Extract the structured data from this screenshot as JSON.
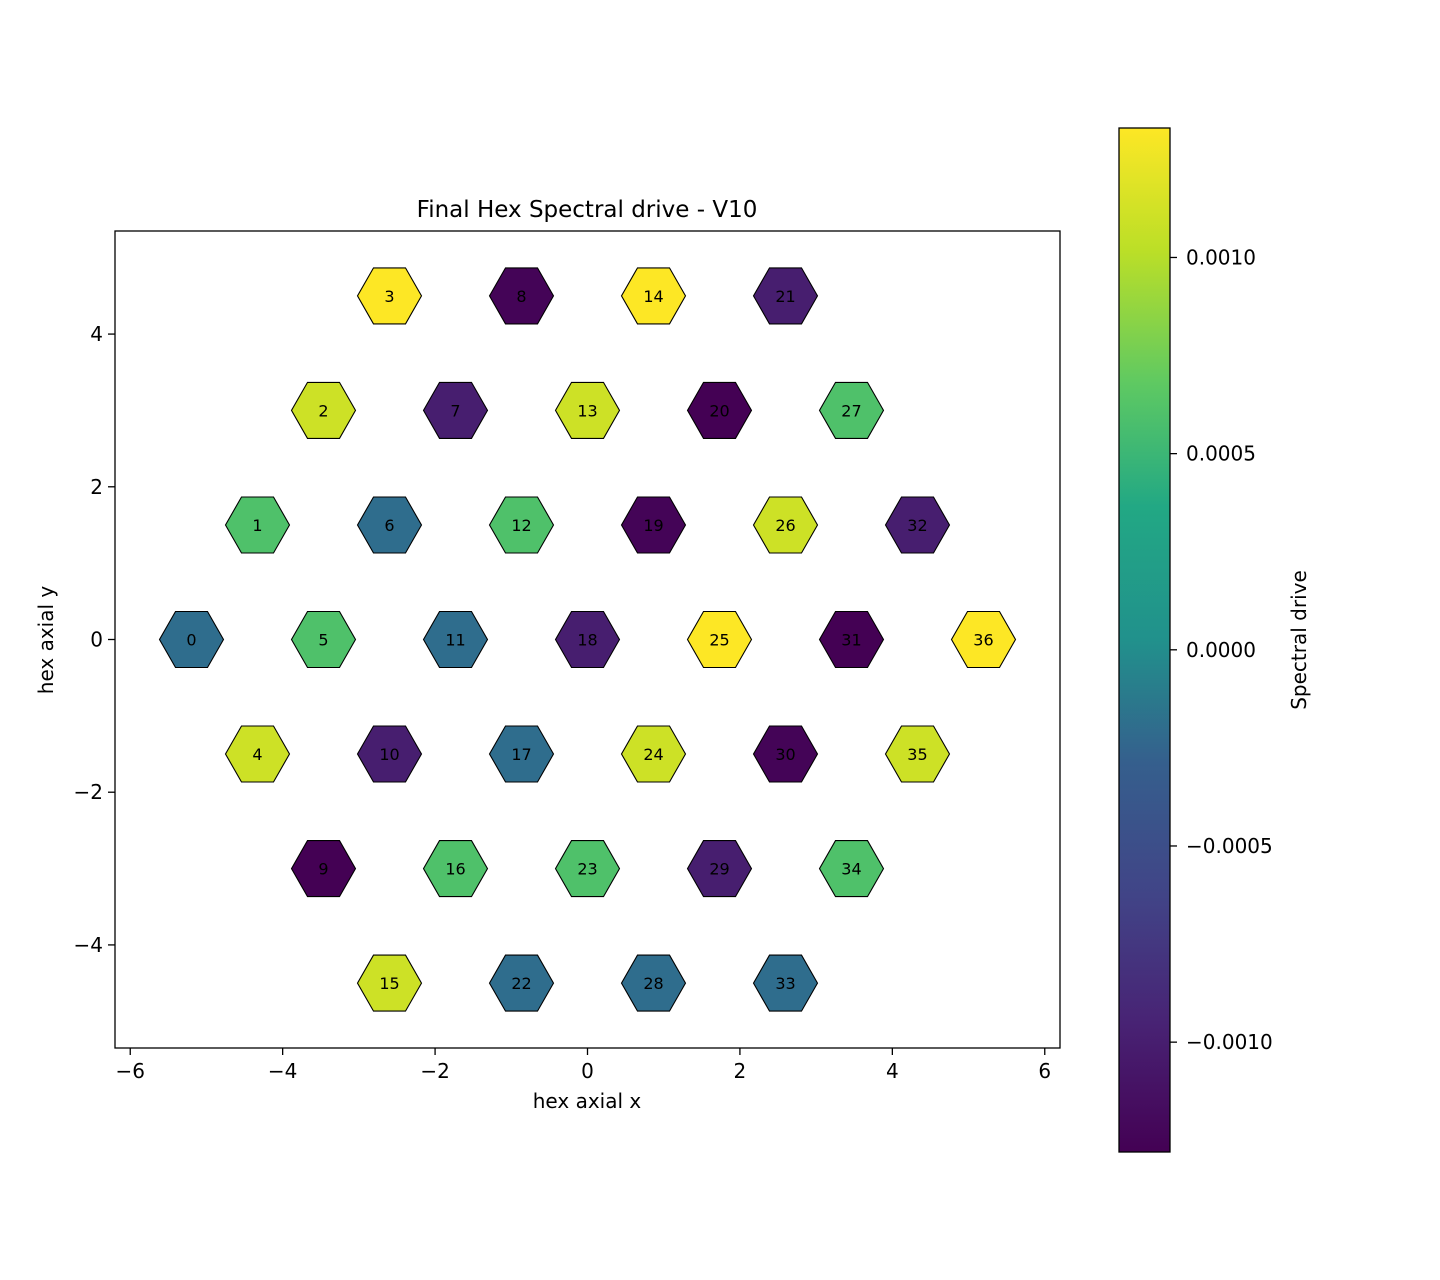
{
  "chart_data": {
    "type": "heatmap",
    "subtype": "hexagonal-cell-map",
    "title": "Final Hex Spectral drive - V10",
    "xlabel": "hex axial x",
    "ylabel": "hex axial y",
    "xlim": [
      -6.2,
      6.2
    ],
    "ylim": [
      -5.35,
      5.35
    ],
    "xticks": [
      -6,
      -4,
      -2,
      0,
      2,
      4,
      6
    ],
    "xtick_labels": [
      "−6",
      "−4",
      "−2",
      "0",
      "2",
      "4",
      "6"
    ],
    "yticks": [
      -4,
      -2,
      0,
      2,
      4
    ],
    "ytick_labels": [
      "−4",
      "−2",
      "0",
      "2",
      "4"
    ],
    "grid": false,
    "colormap": "viridis",
    "colorbar": {
      "label": "Spectral drive",
      "range": [
        -0.00128,
        0.00133
      ],
      "ticks": [
        -0.001,
        -0.0005,
        0,
        0.0005,
        0.001
      ],
      "tick_labels": [
        "−0.0010",
        "−0.0005",
        "0.0000",
        "0.0005",
        "0.0010"
      ]
    },
    "cells": [
      {
        "id": "0",
        "x": -5.196,
        "y": 0.0,
        "value": -0.0002
      },
      {
        "id": "1",
        "x": -4.33,
        "y": 1.5,
        "value": 0.0006
      },
      {
        "id": "2",
        "x": -3.464,
        "y": 3.0,
        "value": 0.0011
      },
      {
        "id": "3",
        "x": -2.598,
        "y": 4.5,
        "value": 0.00133
      },
      {
        "id": "4",
        "x": -4.33,
        "y": -1.5,
        "value": 0.0011
      },
      {
        "id": "5",
        "x": -3.464,
        "y": 0.0,
        "value": 0.0006
      },
      {
        "id": "6",
        "x": -2.598,
        "y": 1.5,
        "value": -0.0002
      },
      {
        "id": "7",
        "x": -1.732,
        "y": 3.0,
        "value": -0.001
      },
      {
        "id": "8",
        "x": -0.866,
        "y": 4.5,
        "value": -0.00125
      },
      {
        "id": "9",
        "x": -3.464,
        "y": -3.0,
        "value": -0.00128
      },
      {
        "id": "10",
        "x": -2.598,
        "y": -1.5,
        "value": -0.001
      },
      {
        "id": "11",
        "x": -1.732,
        "y": 0.0,
        "value": -0.0002
      },
      {
        "id": "12",
        "x": -0.866,
        "y": 1.5,
        "value": 0.0006
      },
      {
        "id": "13",
        "x": 0.0,
        "y": 3.0,
        "value": 0.0011
      },
      {
        "id": "14",
        "x": 0.866,
        "y": 4.5,
        "value": 0.00133
      },
      {
        "id": "15",
        "x": -2.598,
        "y": -4.5,
        "value": 0.0011
      },
      {
        "id": "16",
        "x": -1.732,
        "y": -3.0,
        "value": 0.0006
      },
      {
        "id": "17",
        "x": -0.866,
        "y": -1.5,
        "value": -0.0002
      },
      {
        "id": "18",
        "x": 0.0,
        "y": 0.0,
        "value": -0.001
      },
      {
        "id": "19",
        "x": 0.866,
        "y": 1.5,
        "value": -0.00125
      },
      {
        "id": "20",
        "x": 1.732,
        "y": 3.0,
        "value": -0.00128
      },
      {
        "id": "21",
        "x": 2.598,
        "y": 4.5,
        "value": -0.001
      },
      {
        "id": "22",
        "x": -0.866,
        "y": -4.5,
        "value": -0.0002
      },
      {
        "id": "23",
        "x": 0.0,
        "y": -3.0,
        "value": 0.0006
      },
      {
        "id": "24",
        "x": 0.866,
        "y": -1.5,
        "value": 0.0011
      },
      {
        "id": "25",
        "x": 1.732,
        "y": 0.0,
        "value": 0.00133
      },
      {
        "id": "26",
        "x": 2.598,
        "y": 1.5,
        "value": 0.0011
      },
      {
        "id": "27",
        "x": 3.464,
        "y": 3.0,
        "value": 0.0006
      },
      {
        "id": "28",
        "x": 0.866,
        "y": -4.5,
        "value": -0.0002
      },
      {
        "id": "29",
        "x": 1.732,
        "y": -3.0,
        "value": -0.001
      },
      {
        "id": "30",
        "x": 2.598,
        "y": -1.5,
        "value": -0.00125
      },
      {
        "id": "31",
        "x": 3.464,
        "y": 0.0,
        "value": -0.00128
      },
      {
        "id": "32",
        "x": 4.33,
        "y": 1.5,
        "value": -0.001
      },
      {
        "id": "33",
        "x": 2.598,
        "y": -4.5,
        "value": -0.0002
      },
      {
        "id": "34",
        "x": 3.464,
        "y": -3.0,
        "value": 0.0006
      },
      {
        "id": "35",
        "x": 4.33,
        "y": -1.5,
        "value": 0.0011
      },
      {
        "id": "36",
        "x": 5.196,
        "y": 0.0,
        "value": 0.00133
      }
    ]
  }
}
